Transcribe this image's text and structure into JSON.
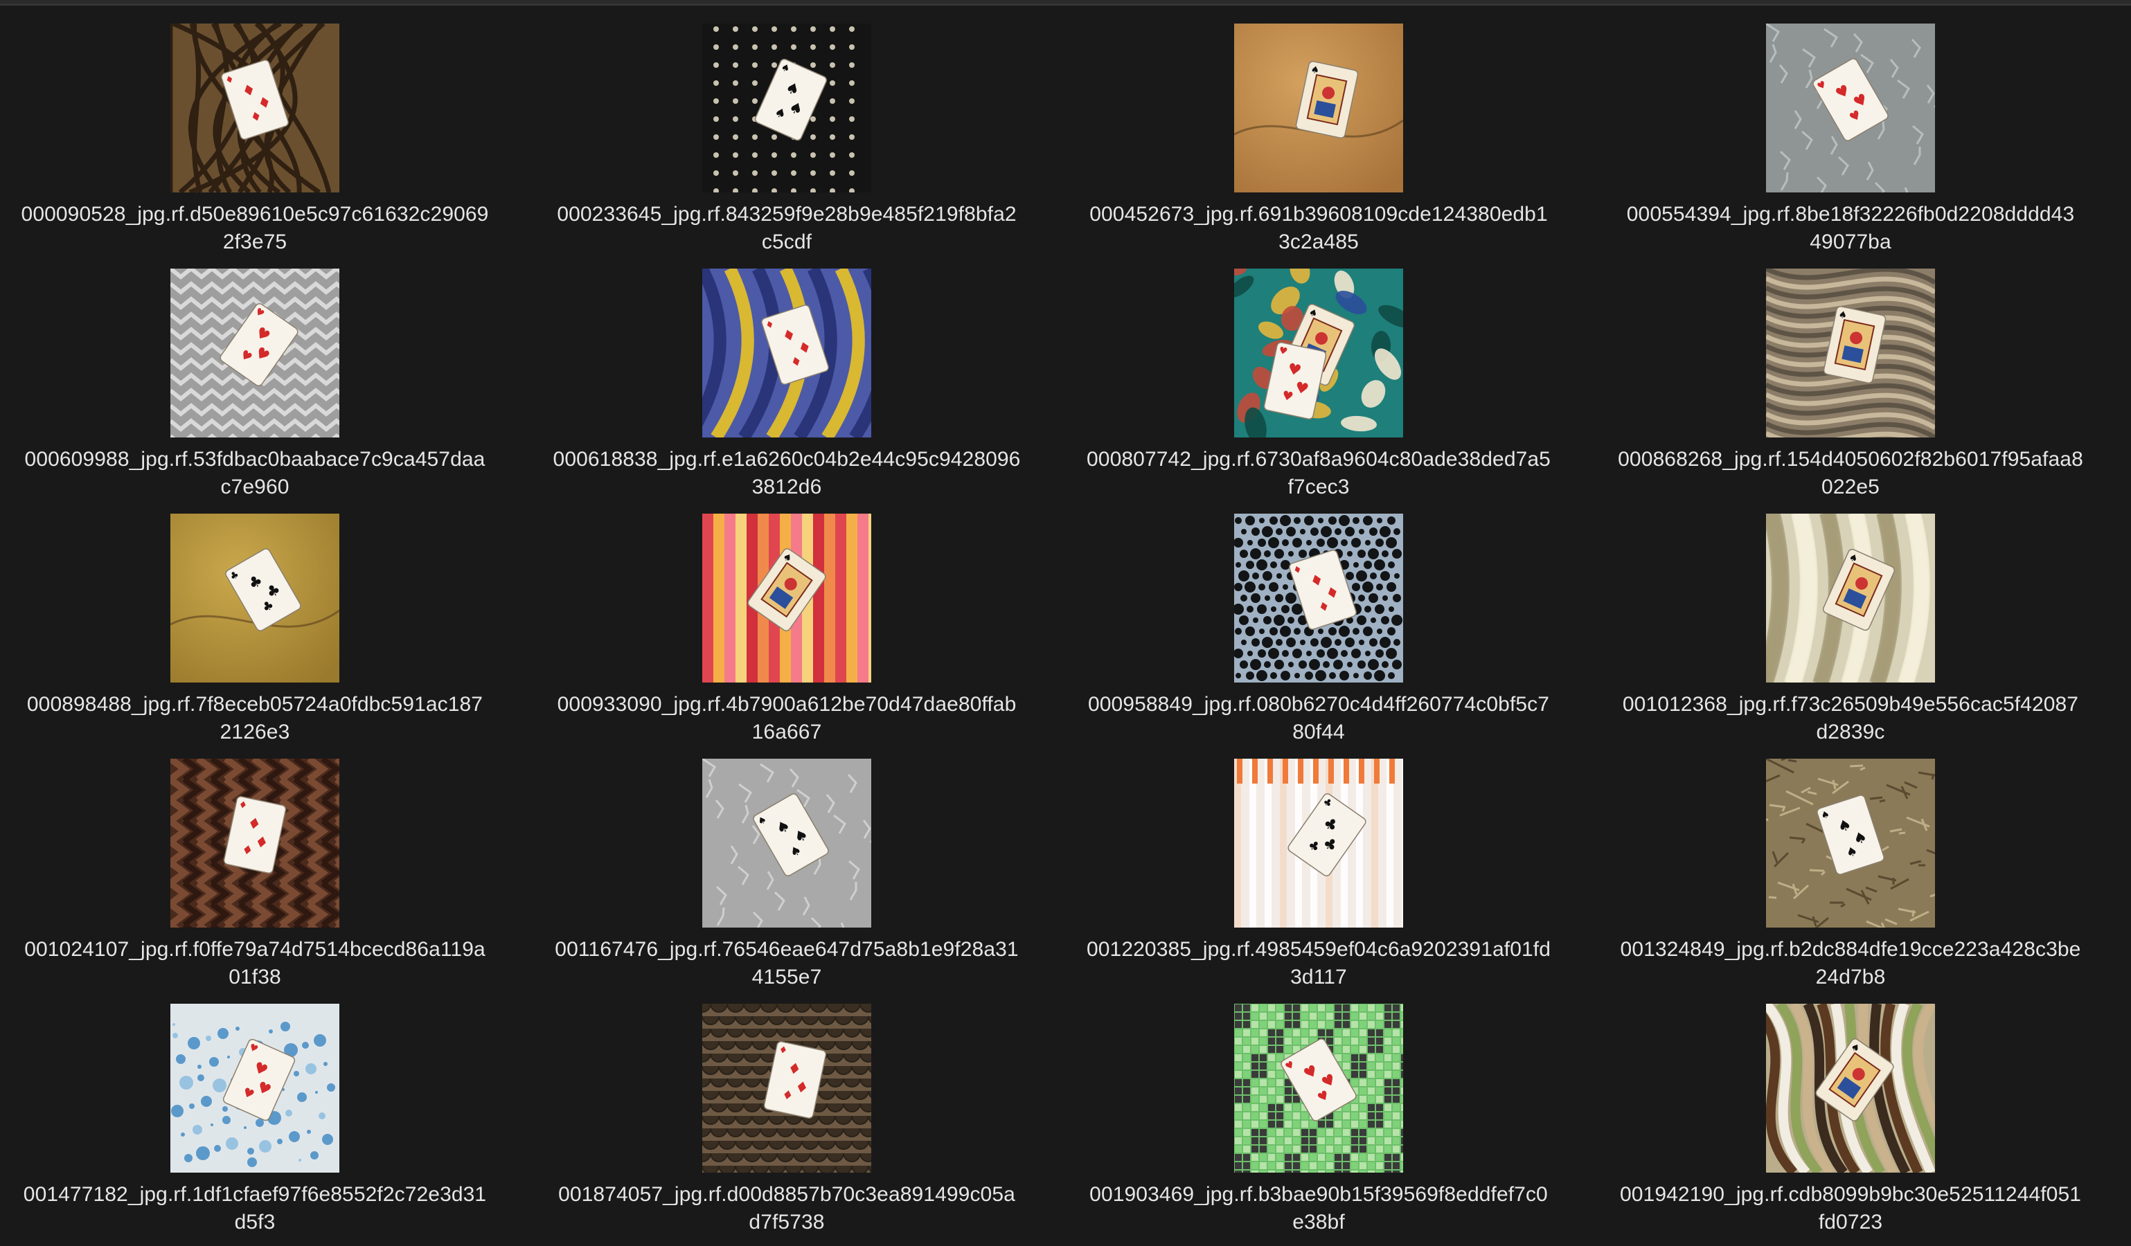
{
  "files": [
    {
      "line1": "000090528_jpg.rf.d50e89610e5c97c61632c29069",
      "line2": "2f3e75",
      "bg": "#6b5030",
      "pattern": "knot",
      "accent": "#2f2012",
      "cards": [
        "diamond"
      ]
    },
    {
      "line1": "000233645_jpg.rf.843259f9e28b9e485f219f8bfa2",
      "line2": "c5cdf",
      "bg": "#141414",
      "pattern": "studs",
      "accent": "#c9c2b0",
      "cards": [
        "spade"
      ]
    },
    {
      "line1": "000452673_jpg.rf.691b39608109cde124380edb1",
      "line2": "3c2a485",
      "bg": "#a8733a",
      "pattern": "gold",
      "accent": "#d3a05e",
      "cards": [
        "face"
      ]
    },
    {
      "line1": "000554394_jpg.rf.8be18f32226fb0d2208dddd43",
      "line2": "49077ba",
      "bg": "#8f9595",
      "pattern": "stone",
      "accent": "#b8bdbd",
      "cards": [
        "heart"
      ]
    },
    {
      "line1": "000609988_jpg.rf.53fdbac0baabace7c9ca457daa",
      "line2": "c7e960",
      "bg": "#9e9e9e",
      "pattern": "chevron",
      "accent": "#d9d9d9",
      "cards": [
        "heart"
      ]
    },
    {
      "line1": "000618838_jpg.rf.e1a6260c04b2e44c95c9428096",
      "line2": "3812d6",
      "bg": "#4c5aa8",
      "pattern": "stripes",
      "accent": "#d9b832",
      "cards": [
        "diamond"
      ]
    },
    {
      "line1": "000807742_jpg.rf.6730af8a9604c80ade38ded7a5",
      "line2": "f7cec3",
      "bg": "#1f7f7a",
      "pattern": "paisley",
      "accent": "#c14b3a",
      "cards": [
        "face",
        "heart"
      ]
    },
    {
      "line1": "000868268_jpg.rf.154d4050602f82b6017f95afaa8",
      "line2": "022e5",
      "bg": "#8c7d68",
      "pattern": "marble",
      "accent": "#c7b89c",
      "cards": [
        "face"
      ]
    },
    {
      "line1": "000898488_jpg.rf.7f8eceb05724a0fdbc591ac187",
      "line2": "2126e3",
      "bg": "#9a7a2c",
      "pattern": "gold",
      "accent": "#c9a84c",
      "cards": [
        "club"
      ]
    },
    {
      "line1": "000933090_jpg.rf.4b7900a612be70d47dae80ffab",
      "line2": "16a667",
      "bg": "#e0464f",
      "pattern": "vstripes",
      "accent": "#f4b046",
      "cards": [
        "face"
      ]
    },
    {
      "line1": "000958849_jpg.rf.080b6270c4d4ff260774c0bf5c7",
      "line2": "80f44",
      "bg": "#9fb1c2",
      "pattern": "dots",
      "accent": "#121416",
      "cards": [
        "diamond"
      ]
    },
    {
      "line1": "001012368_jpg.rf.f73c26509b49e556cac5f42087",
      "line2": "d2839c",
      "bg": "#d8d2b8",
      "pattern": "fur",
      "accent": "#a69c78",
      "cards": [
        "face"
      ]
    },
    {
      "line1": "001024107_jpg.rf.f0ffe79a74d7514bcecd86a119a",
      "line2": "01f38",
      "bg": "#4a2a1c",
      "pattern": "weave",
      "accent": "#7a4a32",
      "cards": [
        "diamond"
      ]
    },
    {
      "line1": "001167476_jpg.rf.76546eae647d75a8b1e9f28a31",
      "line2": "4155e7",
      "bg": "#a9a9a9",
      "pattern": "stone",
      "accent": "#cfcfcf",
      "cards": [
        "spade"
      ]
    },
    {
      "line1": "001220385_jpg.rf.4985459ef04c6a9202391af01fd",
      "line2": "3d117",
      "bg": "#f3ece6",
      "pattern": "curtain",
      "accent": "#f07a3a",
      "cards": [
        "club"
      ]
    },
    {
      "line1": "001324849_jpg.rf.b2dc884dfe19cce223a428c3be",
      "line2": "24d7b8",
      "bg": "#8a7a58",
      "pattern": "straw",
      "accent": "#bfae86",
      "cards": [
        "spade"
      ]
    },
    {
      "line1": "001477182_jpg.rf.1df1cfaef97f6e8552f2c72e3d31",
      "line2": "d5f3",
      "bg": "#dfe6ea",
      "pattern": "splash",
      "accent": "#2f7fbf",
      "cards": [
        "heart"
      ]
    },
    {
      "line1": "001874057_jpg.rf.d00d8857b70c3ea891499c05a",
      "line2": "d7f5738",
      "bg": "#6e5a44",
      "pattern": "scales",
      "accent": "#c9b69c",
      "cards": [
        "diamond"
      ]
    },
    {
      "line1": "001903469_jpg.rf.b3bae90b15f39569f8eddfef7c0",
      "line2": "e38bf",
      "bg": "#6dbf6a",
      "pattern": "mosaic",
      "accent": "#3a3a3a",
      "cards": [
        "heart"
      ]
    },
    {
      "line1": "001942190_jpg.rf.cdb8099b9bc30e52511244f051",
      "line2": "fd0723",
      "bg": "#b9ad8c",
      "pattern": "swirl",
      "accent": "#5c3a22",
      "cards": [
        "face"
      ]
    }
  ]
}
